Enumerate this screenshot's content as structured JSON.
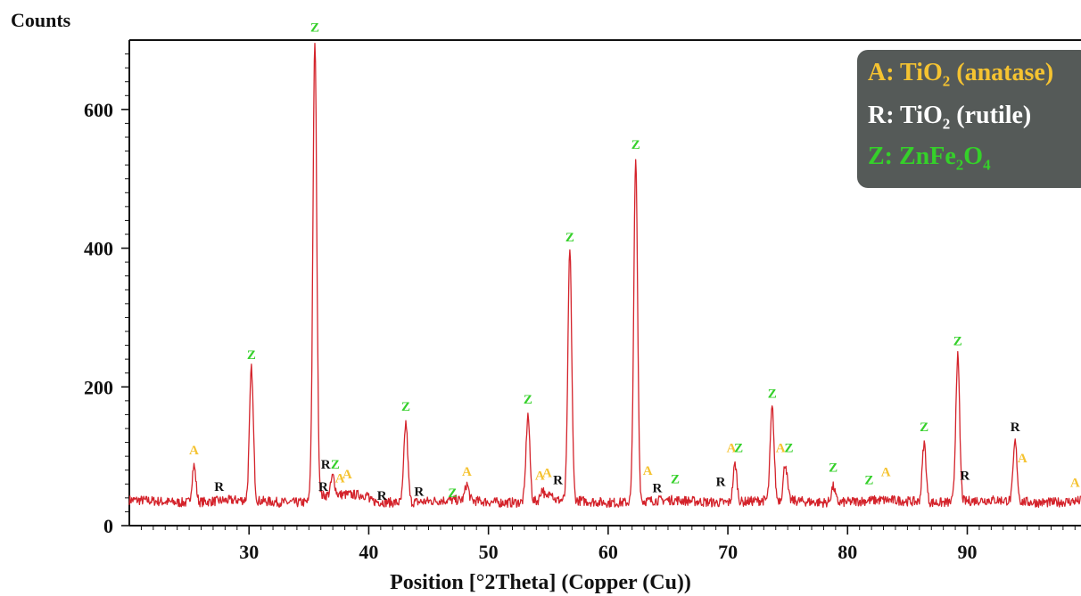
{
  "chart_data": {
    "type": "line",
    "ylabel": "Counts",
    "xlabel": "Position [°2Theta] (Copper (Cu))",
    "xlim": [
      20,
      99.5
    ],
    "ylim": [
      0,
      700
    ],
    "x_ticks": [
      30,
      40,
      50,
      60,
      70,
      80,
      90
    ],
    "y_ticks": [
      0,
      200,
      400,
      600
    ],
    "grid": false,
    "line_color": "#d4232b",
    "baseline": 35,
    "series": [
      {
        "peaks": [
          {
            "x": 25.4,
            "y": 88
          },
          {
            "x": 30.2,
            "y": 225
          },
          {
            "x": 35.5,
            "y": 690
          },
          {
            "x": 37.0,
            "y": 62
          },
          {
            "x": 43.1,
            "y": 150
          },
          {
            "x": 48.2,
            "y": 58
          },
          {
            "x": 53.3,
            "y": 160
          },
          {
            "x": 54.5,
            "y": 52
          },
          {
            "x": 55.2,
            "y": 50
          },
          {
            "x": 56.8,
            "y": 395
          },
          {
            "x": 62.3,
            "y": 525
          },
          {
            "x": 70.6,
            "y": 90
          },
          {
            "x": 73.7,
            "y": 168
          },
          {
            "x": 74.8,
            "y": 88
          },
          {
            "x": 78.8,
            "y": 58
          },
          {
            "x": 86.4,
            "y": 120
          },
          {
            "x": 89.2,
            "y": 245
          },
          {
            "x": 94.0,
            "y": 120
          }
        ]
      }
    ],
    "annotations": [
      {
        "label": "Z",
        "x": 35.5,
        "y": 712,
        "color": "green"
      },
      {
        "label": "Z",
        "x": 30.2,
        "y": 240,
        "color": "green"
      },
      {
        "label": "A",
        "x": 25.4,
        "y": 103,
        "color": "yellow"
      },
      {
        "label": "R",
        "x": 27.5,
        "y": 50,
        "color": "black"
      },
      {
        "label": "R",
        "x": 36.4,
        "y": 82,
        "color": "black"
      },
      {
        "label": "Z",
        "x": 37.2,
        "y": 82,
        "color": "green"
      },
      {
        "label": "R",
        "x": 36.2,
        "y": 50,
        "color": "black"
      },
      {
        "label": "A",
        "x": 37.6,
        "y": 62,
        "color": "yellow"
      },
      {
        "label": "A",
        "x": 38.2,
        "y": 68,
        "color": "yellow"
      },
      {
        "label": "R",
        "x": 41.1,
        "y": 37,
        "color": "black"
      },
      {
        "label": "Z",
        "x": 43.1,
        "y": 166,
        "color": "green"
      },
      {
        "label": "R",
        "x": 44.2,
        "y": 43,
        "color": "black"
      },
      {
        "label": "Z",
        "x": 47.0,
        "y": 41,
        "color": "green"
      },
      {
        "label": "A",
        "x": 48.2,
        "y": 72,
        "color": "yellow"
      },
      {
        "label": "Z",
        "x": 53.3,
        "y": 176,
        "color": "green"
      },
      {
        "label": "A",
        "x": 54.3,
        "y": 66,
        "color": "yellow"
      },
      {
        "label": "A",
        "x": 54.9,
        "y": 70,
        "color": "yellow"
      },
      {
        "label": "R",
        "x": 55.8,
        "y": 60,
        "color": "black"
      },
      {
        "label": "Z",
        "x": 56.8,
        "y": 410,
        "color": "green"
      },
      {
        "label": "Z",
        "x": 62.3,
        "y": 543,
        "color": "green"
      },
      {
        "label": "A",
        "x": 63.3,
        "y": 73,
        "color": "yellow"
      },
      {
        "label": "R",
        "x": 64.1,
        "y": 48,
        "color": "black"
      },
      {
        "label": "Z",
        "x": 65.6,
        "y": 61,
        "color": "green"
      },
      {
        "label": "R",
        "x": 69.4,
        "y": 57,
        "color": "black"
      },
      {
        "label": "A",
        "x": 70.3,
        "y": 106,
        "color": "yellow"
      },
      {
        "label": "Z",
        "x": 70.9,
        "y": 106,
        "color": "green"
      },
      {
        "label": "Z",
        "x": 73.7,
        "y": 184,
        "color": "green"
      },
      {
        "label": "A",
        "x": 74.4,
        "y": 106,
        "color": "yellow"
      },
      {
        "label": "Z",
        "x": 75.1,
        "y": 106,
        "color": "green"
      },
      {
        "label": "Z",
        "x": 78.8,
        "y": 78,
        "color": "green"
      },
      {
        "label": "Z",
        "x": 81.8,
        "y": 60,
        "color": "green"
      },
      {
        "label": "A",
        "x": 83.2,
        "y": 71,
        "color": "yellow"
      },
      {
        "label": "Z",
        "x": 86.4,
        "y": 136,
        "color": "green"
      },
      {
        "label": "Z",
        "x": 89.2,
        "y": 260,
        "color": "green"
      },
      {
        "label": "R",
        "x": 89.8,
        "y": 66,
        "color": "black"
      },
      {
        "label": "R",
        "x": 94.0,
        "y": 136,
        "color": "black"
      },
      {
        "label": "A",
        "x": 94.6,
        "y": 91,
        "color": "yellow"
      },
      {
        "label": "A",
        "x": 99.0,
        "y": 56,
        "color": "yellow"
      }
    ],
    "legend": {
      "placement": "top-right",
      "entries": [
        {
          "prefix": "A: TiO",
          "sub": "2",
          "suffix": " (anatase)",
          "color": "yellow"
        },
        {
          "prefix": "R: TiO",
          "sub": "2",
          "suffix": " (rutile)",
          "color": "white"
        },
        {
          "prefix": "Z: ZnFe",
          "sub": "2",
          "mid": "O",
          "sub2": "4",
          "color": "green"
        }
      ]
    },
    "colors": {
      "yellow": "#f5c331",
      "green": "#35d02a",
      "black": "#111111",
      "white": "#ffffff"
    }
  }
}
